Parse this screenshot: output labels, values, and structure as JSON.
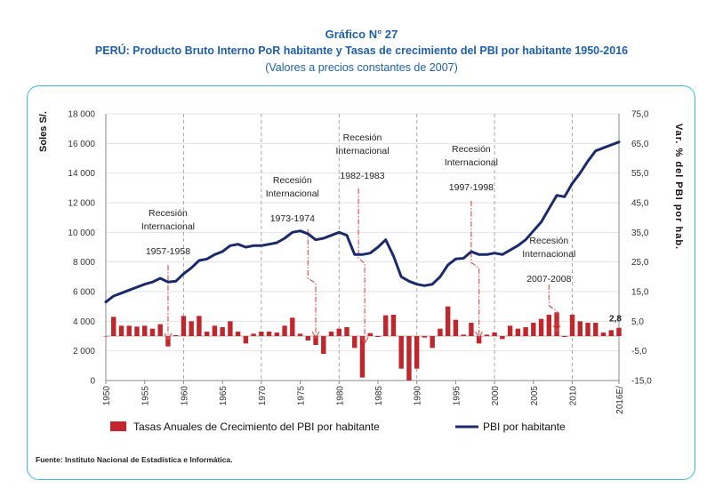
{
  "header": {
    "figure_number": "Gráfico N° 27",
    "title": "PERÚ: Producto Bruto Interno PoR habitante y Tasas de crecimiento del PBI por habitante 1950-2016",
    "subtitle": "(Valores a precios constantes de 2007)"
  },
  "source": "Fuente: Instituto Nacional de Estadística e Informática.",
  "colors": {
    "bar": "#c0272d",
    "line": "#1b2a6b",
    "frame": "#3fb6e0",
    "title": "#1f5fa8",
    "recession": "#d64b4b"
  },
  "chart_data": {
    "type": "bar+line",
    "ylabel_left": "Soles S/.",
    "ylabel_right": "Var. % del PBI por hab.",
    "ylim_left": [
      0,
      18000
    ],
    "ylim_right": [
      -15,
      75
    ],
    "yticks_left": [
      "0",
      "2 000",
      "4 000",
      "6 000",
      "8 000",
      "10 000",
      "12 000",
      "14 000",
      "16 000",
      "18 000"
    ],
    "yticks_right": [
      "-15,0",
      "-5,0",
      "5,0",
      "15,0",
      "25,0",
      "35,0",
      "45,0",
      "55,0",
      "65,0",
      "75,0"
    ],
    "xticks": [
      "1950",
      "1955",
      "1960",
      "1965",
      "1970",
      "1975",
      "1980",
      "1985",
      "1990",
      "1995",
      "2000",
      "2005",
      "2010",
      "2016E/"
    ],
    "years": [
      1950,
      1951,
      1952,
      1953,
      1954,
      1955,
      1956,
      1957,
      1958,
      1959,
      1960,
      1961,
      1962,
      1963,
      1964,
      1965,
      1966,
      1967,
      1968,
      1969,
      1970,
      1971,
      1972,
      1973,
      1974,
      1975,
      1976,
      1977,
      1978,
      1979,
      1980,
      1981,
      1982,
      1983,
      1984,
      1985,
      1986,
      1987,
      1988,
      1989,
      1990,
      1991,
      1992,
      1993,
      1994,
      1995,
      1996,
      1997,
      1998,
      1999,
      2000,
      2001,
      2002,
      2003,
      2004,
      2005,
      2006,
      2007,
      2008,
      2009,
      2010,
      2011,
      2012,
      2013,
      2014,
      2015,
      2016
    ],
    "series": [
      {
        "name": "Tasas Anuales de Crecimiento del PBI por habitante",
        "type": "bar",
        "axis": "right",
        "values": [
          0,
          6.5,
          3.5,
          3.5,
          3.2,
          3.5,
          2.5,
          4,
          -3.5,
          0.3,
          6.8,
          5,
          6.8,
          1.5,
          3.5,
          3,
          5,
          1.5,
          -2.5,
          0.8,
          1.5,
          1.5,
          1.2,
          3.5,
          6.2,
          0.8,
          -1.5,
          -3,
          -6,
          1.5,
          2.5,
          3,
          -4,
          -14,
          1,
          -0.3,
          7,
          7.2,
          -11,
          -15,
          -11,
          -0.5,
          -4,
          2.5,
          10,
          5.5,
          0.5,
          4.5,
          -2.5,
          0.5,
          1.2,
          -1,
          3.5,
          2.5,
          3,
          4.5,
          5.8,
          7.2,
          8,
          -0.3,
          7.2,
          5,
          4.5,
          4.5,
          1.2,
          2,
          2.8
        ]
      },
      {
        "name": "PBI por habitante",
        "type": "line",
        "axis": "left",
        "values": [
          5300,
          5700,
          5900,
          6100,
          6300,
          6500,
          6650,
          6900,
          6650,
          6700,
          7200,
          7600,
          8100,
          8200,
          8500,
          8700,
          9100,
          9200,
          9000,
          9100,
          9100,
          9200,
          9300,
          9600,
          10000,
          10100,
          9900,
          9500,
          9600,
          9800,
          10000,
          9800,
          8500,
          8500,
          8600,
          9000,
          9500,
          8400,
          7000,
          6700,
          6500,
          6400,
          6500,
          7000,
          7800,
          8200,
          8250,
          8700,
          8500,
          8500,
          8600,
          8500,
          8800,
          9100,
          9500,
          10100,
          10700,
          11600,
          12500,
          12400,
          13300,
          14000,
          14800,
          15500,
          15700,
          15900,
          16100
        ]
      }
    ],
    "annotations": [
      {
        "line1": "Recesión",
        "line2": "Internacional",
        "years": "1957-1958"
      },
      {
        "line1": "Recesión",
        "line2": "Internacional",
        "years": "1973-1974"
      },
      {
        "line1": "Recesión",
        "line2": "Internacional",
        "years": "1982-1983"
      },
      {
        "line1": "Recesión",
        "line2": "Internacional",
        "years": "1997-1998"
      },
      {
        "line1": "Recesión",
        "line2": "Internacional",
        "years": "2007-2008"
      }
    ],
    "last_value_label": "2,8",
    "decade_gridlines": [
      1960,
      1970,
      1980,
      1990,
      2000,
      2010
    ],
    "legend_position": "bottom"
  }
}
